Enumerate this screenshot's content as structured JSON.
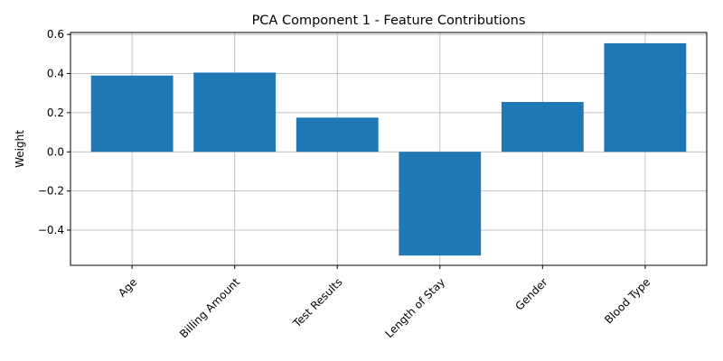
{
  "chart_data": {
    "type": "bar",
    "title": "PCA Component 1 - Feature Contributions",
    "xlabel": "",
    "ylabel": "Weight",
    "categories": [
      "Age",
      "Billing Amount",
      "Test Results",
      "Length of Stay",
      "Gender",
      "Blood Type"
    ],
    "values": [
      0.39,
      0.405,
      0.175,
      -0.53,
      0.255,
      0.555
    ],
    "ylim": [
      -0.58,
      0.61
    ],
    "yticks": [
      -0.4,
      -0.2,
      0.0,
      0.2,
      0.4,
      0.6
    ],
    "ytick_labels": [
      "−0.4",
      "−0.2",
      "0.0",
      "0.2",
      "0.4",
      "0.6"
    ],
    "grid": true,
    "bar_color": "#1f77b4",
    "xtick_rotation_deg": 45
  }
}
